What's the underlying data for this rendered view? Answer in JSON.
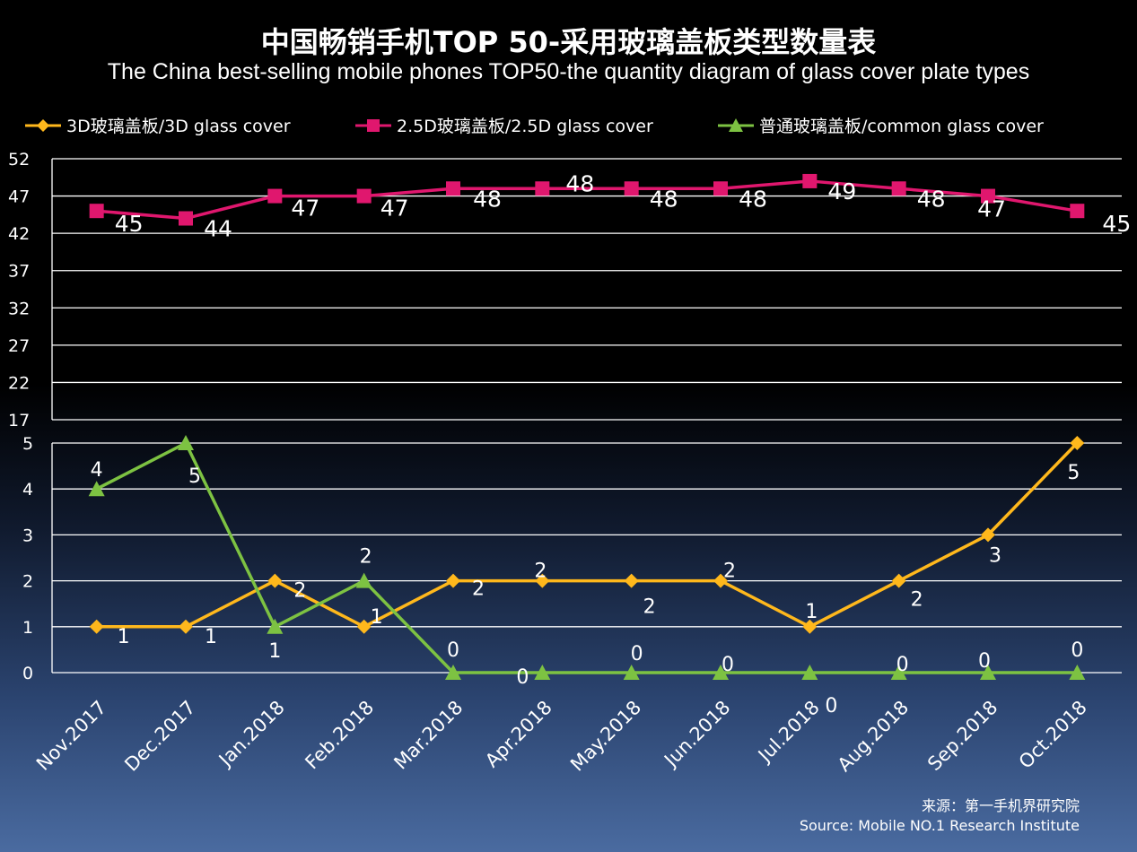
{
  "chart_data": {
    "type": "line",
    "title": "中国畅销手机TOP 50-采用玻璃盖板类型数量表",
    "subtitle": "The China best-selling mobile phones TOP50-the quantity diagram of glass cover plate types",
    "categories": [
      "Nov.2017",
      "Dec.2017",
      "Jan.2018",
      "Feb.2018",
      "Mar.2018",
      "Apr.2018",
      "May.2018",
      "Jun.2018",
      "Jul.2018",
      "Aug.2018",
      "Sep.2018",
      "Oct.2018"
    ],
    "series": [
      {
        "name": "3D玻璃盖板/3D glass cover",
        "color": "#FFB81C",
        "marker": "diamond",
        "axis": "lower",
        "values": [
          1,
          1,
          2,
          1,
          2,
          2,
          2,
          2,
          1,
          2,
          3,
          5
        ]
      },
      {
        "name": "2.5D玻璃盖板/2.5D glass cover",
        "color": "#E0176E",
        "marker": "square",
        "axis": "upper",
        "values": [
          45,
          44,
          47,
          47,
          48,
          48,
          48,
          48,
          49,
          48,
          47,
          45
        ]
      },
      {
        "name": "普通玻璃盖板/common glass cover",
        "color": "#7DC242",
        "marker": "triangle",
        "axis": "lower",
        "values": [
          4,
          5,
          1,
          2,
          0,
          0,
          0,
          0,
          0,
          0,
          0,
          0
        ]
      }
    ],
    "upper_axis": {
      "ylim": [
        17,
        52
      ],
      "ticks": [
        "52",
        "47",
        "42",
        "37",
        "32",
        "27",
        "22",
        "17"
      ]
    },
    "lower_axis": {
      "ylim": [
        0,
        5
      ],
      "ticks": [
        "5",
        "4",
        "3",
        "2",
        "1",
        "0"
      ]
    },
    "grid": true,
    "legend_position": "top"
  },
  "source": {
    "cn": "来源：第一手机界研究院",
    "en": "Source: Mobile NO.1 Research Institute"
  }
}
